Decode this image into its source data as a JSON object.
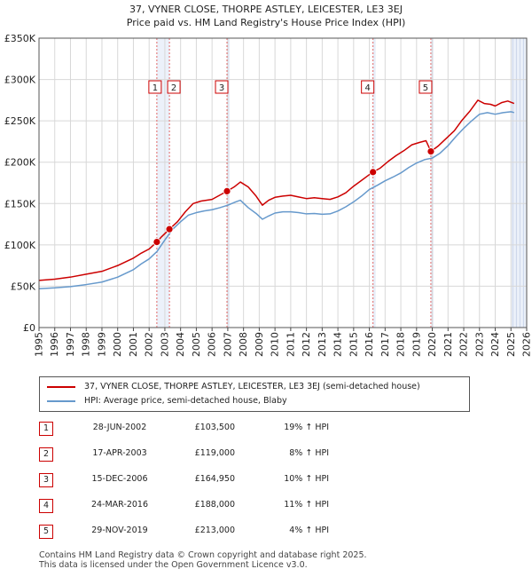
{
  "title": "37, VYNER CLOSE, THORPE ASTLEY, LEICESTER, LE3 3EJ",
  "subtitle": "Price paid vs. HM Land Registry's House Price Index (HPI)",
  "colors": {
    "property": "#cc0000",
    "hpi": "#6699cc",
    "shade": "#dde6f5",
    "grid": "#d8d8d8"
  },
  "chart_data": {
    "type": "line",
    "title": "37, VYNER CLOSE, THORPE ASTLEY, LEICESTER, LE3 3EJ",
    "subtitle": "Price paid vs. HM Land Registry's House Price Index (HPI)",
    "xlabel": "",
    "ylabel": "",
    "xlim": [
      1995,
      2026
    ],
    "ylim": [
      0,
      350000
    ],
    "y_ticks": [
      0,
      50000,
      100000,
      150000,
      200000,
      250000,
      300000,
      350000
    ],
    "y_tick_labels": [
      "£0",
      "£50K",
      "£100K",
      "£150K",
      "£200K",
      "£250K",
      "£300K",
      "£350K"
    ],
    "x_ticks": [
      "1995",
      "1996",
      "1997",
      "1998",
      "1999",
      "2000",
      "2001",
      "2002",
      "2003",
      "2004",
      "2005",
      "2006",
      "2007",
      "2008",
      "2009",
      "2010",
      "2011",
      "2012",
      "2013",
      "2014",
      "2015",
      "2016",
      "2017",
      "2018",
      "2019",
      "2020",
      "2021",
      "2022",
      "2023",
      "2024",
      "2025",
      "2026"
    ],
    "grid": true,
    "forecast_from": 2025.0,
    "series": [
      {
        "name": "37, VYNER CLOSE, THORPE ASTLEY, LEICESTER, LE3 3EJ (semi-detached house)",
        "color": "#cc0000",
        "x": [
          1995.0,
          1996.0,
          1997.0,
          1998.0,
          1999.0,
          2000.0,
          2001.0,
          2001.5,
          2002.0,
          2002.49,
          2002.8,
          2003.29,
          2003.8,
          2004.3,
          2004.8,
          2005.3,
          2006.0,
          2006.95,
          2007.4,
          2007.8,
          2008.3,
          2008.8,
          2009.2,
          2009.6,
          2010.0,
          2010.5,
          2011.0,
          2011.5,
          2012.0,
          2012.5,
          2013.0,
          2013.5,
          2014.0,
          2014.5,
          2015.0,
          2015.5,
          2016.0,
          2016.23,
          2016.7,
          2017.2,
          2017.7,
          2018.2,
          2018.7,
          2019.2,
          2019.6,
          2019.91,
          2020.4,
          2020.9,
          2021.4,
          2021.9,
          2022.4,
          2022.9,
          2023.3,
          2023.7,
          2024.0,
          2024.4,
          2024.8,
          2025.2
        ],
        "y": [
          57000,
          58500,
          61000,
          64500,
          68000,
          75000,
          84000,
          90000,
          95000,
          103500,
          110000,
          119000,
          128000,
          140000,
          150000,
          153000,
          155000,
          164950,
          170000,
          176000,
          170000,
          159000,
          148000,
          154000,
          157500,
          159000,
          160000,
          158000,
          156000,
          157000,
          156000,
          155000,
          158000,
          163000,
          171000,
          178000,
          185000,
          188000,
          193000,
          201000,
          208000,
          214000,
          221000,
          224000,
          226000,
          213000,
          220000,
          229000,
          238000,
          251000,
          262000,
          275000,
          271000,
          270000,
          268000,
          272000,
          274000,
          271000
        ]
      },
      {
        "name": "HPI: Average price, semi-detached house, Blaby",
        "color": "#6699cc",
        "x": [
          1995.0,
          1996.0,
          1997.0,
          1998.0,
          1999.0,
          2000.0,
          2001.0,
          2001.5,
          2002.0,
          2002.5,
          2003.0,
          2003.5,
          2004.0,
          2004.5,
          2005.0,
          2005.5,
          2006.0,
          2006.5,
          2007.0,
          2007.5,
          2007.8,
          2008.3,
          2008.8,
          2009.2,
          2009.6,
          2010.0,
          2010.5,
          2011.0,
          2011.5,
          2012.0,
          2012.5,
          2013.0,
          2013.5,
          2014.0,
          2014.5,
          2015.0,
          2015.5,
          2016.0,
          2016.5,
          2017.0,
          2017.5,
          2018.0,
          2018.5,
          2019.0,
          2019.5,
          2020.0,
          2020.5,
          2021.0,
          2021.5,
          2022.0,
          2022.5,
          2023.0,
          2023.5,
          2024.0,
          2024.5,
          2025.0,
          2025.2
        ],
        "y": [
          47000,
          48000,
          49500,
          52000,
          55000,
          61000,
          70000,
          77000,
          83000,
          92000,
          106000,
          119000,
          128000,
          136000,
          139000,
          141000,
          142500,
          145000,
          148000,
          152000,
          154000,
          145000,
          138000,
          131000,
          135000,
          138500,
          140000,
          140000,
          139000,
          137500,
          138000,
          137000,
          137500,
          141000,
          146000,
          152000,
          159000,
          167000,
          172000,
          177500,
          182000,
          187000,
          193500,
          199000,
          203000,
          205000,
          211000,
          220000,
          231000,
          241000,
          250000,
          258000,
          260000,
          258000,
          260000,
          261000,
          260000
        ]
      }
    ],
    "sales": [
      {
        "id": "1",
        "x": 2002.49,
        "date": "28-JUN-2002",
        "price": 103500,
        "price_label": "£103,500",
        "hpi_label": "19% ↑ HPI"
      },
      {
        "id": "2",
        "x": 2003.29,
        "date": "17-APR-2003",
        "price": 119000,
        "price_label": "£119,000",
        "hpi_label": "8% ↑ HPI"
      },
      {
        "id": "3",
        "x": 2006.95,
        "date": "15-DEC-2006",
        "price": 164950,
        "price_label": "£164,950",
        "hpi_label": "10% ↑ HPI"
      },
      {
        "id": "4",
        "x": 2016.23,
        "date": "24-MAR-2016",
        "price": 188000,
        "price_label": "£188,000",
        "hpi_label": "11% ↑ HPI"
      },
      {
        "id": "5",
        "x": 2019.91,
        "date": "29-NOV-2019",
        "price": 213000,
        "price_label": "£213,000",
        "hpi_label": "4% ↑ HPI"
      }
    ]
  },
  "legend": {
    "property_label": "37, VYNER CLOSE, THORPE ASTLEY, LEICESTER, LE3 3EJ (semi-detached house)",
    "hpi_label": "HPI: Average price, semi-detached house, Blaby"
  },
  "footer": {
    "line1": "Contains HM Land Registry data © Crown copyright and database right 2025.",
    "line2": "This data is licensed under the Open Government Licence v3.0."
  }
}
